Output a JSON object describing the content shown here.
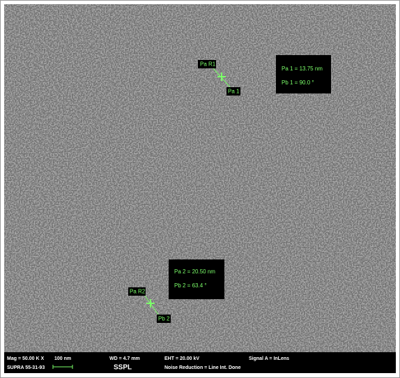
{
  "measurements": {
    "m1": {
      "start_label": "Pa R1",
      "end_label": "Pa 1",
      "info": [
        "Pa 1 = 13.75 nm",
        "Pb 1 = 90.0 °"
      ]
    },
    "m2": {
      "start_label": "Pa R2",
      "end_label": "Pb 2",
      "info": [
        "Pa 2 = 20.50 nm",
        "Pb 2 = 63.4 °"
      ]
    }
  },
  "info_bar": {
    "mag": "Mag = 50.00 K X",
    "scale": "100 nm",
    "wd": "WD = 4.7 mm",
    "eht": "EHT = 20.00 kV",
    "signal": "Signal A = InLens",
    "instrument": "SUPRA 55-31-93",
    "lab": "SSPL",
    "noise": "Noise Reduction = Line Int. Done"
  }
}
